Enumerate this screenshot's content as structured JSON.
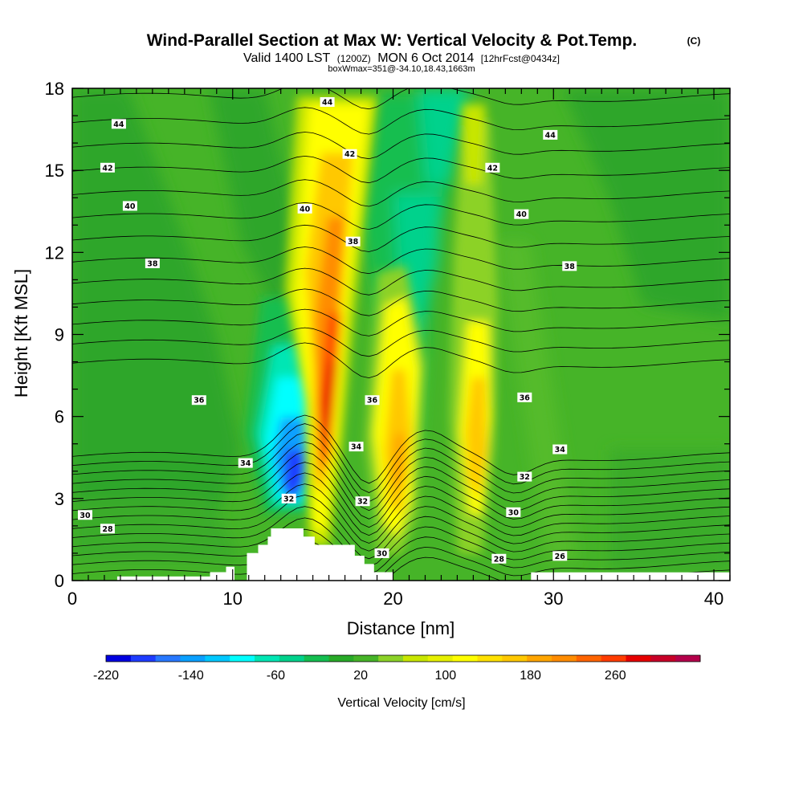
{
  "chart_data": {
    "type": "heatmap",
    "title_main": "Wind-Parallel Section at Max W: Vertical Velocity & Pot.Temp.",
    "title_copyright": "(C)",
    "subtitle_parts": [
      "Valid 1400 LST",
      "(1200Z)",
      "MON 6 Oct 2014",
      "[12hrFcst@0434z]"
    ],
    "subtitle2": "boxWmax=351@-34.10,18.43,1663m",
    "xlabel": "Distance [nm]",
    "ylabel": "Height [Kft MSL]",
    "xlim": [
      0,
      41
    ],
    "ylim": [
      0,
      18
    ],
    "xticks": [
      0,
      10,
      20,
      30,
      40
    ],
    "yticks": [
      0,
      3,
      6,
      9,
      12,
      15,
      18
    ],
    "colorbar": {
      "label": "Vertical Velocity [cm/s]",
      "min": -220,
      "max": 340,
      "step": 20,
      "ticks": [
        -220,
        -140,
        -60,
        20,
        100,
        180,
        260
      ],
      "colors": [
        "#0000e0",
        "#1e3cff",
        "#2878ff",
        "#0aa0ff",
        "#00c8ff",
        "#00ffff",
        "#00e6b4",
        "#00d28c",
        "#14be50",
        "#28aa28",
        "#46b428",
        "#8cd228",
        "#c8e600",
        "#e6f000",
        "#ffff00",
        "#ffe100",
        "#ffc800",
        "#ffa500",
        "#ff8c00",
        "#ff6400",
        "#ff3c00",
        "#e60000",
        "#c80028",
        "#b4004b"
      ]
    },
    "wind_features": [
      {
        "name": "downdraft",
        "x_nm": 13.6,
        "z_kft": 3.8,
        "w_cms": -220
      },
      {
        "name": "main updraft",
        "x_nm": 15.9,
        "z_kft": 6.8,
        "w_cms": 351
      },
      {
        "name": "updraft",
        "x_nm": 20.5,
        "z_kft": 5.0,
        "w_cms": 110
      },
      {
        "name": "updraft",
        "x_nm": 25.5,
        "z_kft": 5.0,
        "w_cms": 110
      }
    ],
    "terrain_profile": [
      [
        8.6,
        0
      ],
      [
        8.6,
        0.3
      ],
      [
        9.6,
        0.3
      ],
      [
        9.6,
        0.5
      ],
      [
        10.1,
        0.5
      ],
      [
        10.1,
        0
      ],
      [
        10.9,
        0
      ],
      [
        10.9,
        1.0
      ],
      [
        11.6,
        1.0
      ],
      [
        11.6,
        1.3
      ],
      [
        12.2,
        1.3
      ],
      [
        12.2,
        1.6
      ],
      [
        12.4,
        1.6
      ],
      [
        12.4,
        1.9
      ],
      [
        14.4,
        1.9
      ],
      [
        14.4,
        1.6
      ],
      [
        15.1,
        1.6
      ],
      [
        15.1,
        1.3
      ],
      [
        17.6,
        1.3
      ],
      [
        17.6,
        0.9
      ],
      [
        18.2,
        0.9
      ],
      [
        18.2,
        0.6
      ],
      [
        18.8,
        0.6
      ],
      [
        18.8,
        0.3
      ],
      [
        20.0,
        0.3
      ],
      [
        20.0,
        0
      ]
    ],
    "contour_labels": [
      {
        "text": "44",
        "x": 2.9,
        "z": 16.7
      },
      {
        "text": "44",
        "x": 15.9,
        "z": 17.5
      },
      {
        "text": "44",
        "x": 29.8,
        "z": 16.3
      },
      {
        "text": "42",
        "x": 2.2,
        "z": 15.1
      },
      {
        "text": "42",
        "x": 17.3,
        "z": 15.6
      },
      {
        "text": "42",
        "x": 26.2,
        "z": 15.1
      },
      {
        "text": "40",
        "x": 3.6,
        "z": 13.7
      },
      {
        "text": "40",
        "x": 14.5,
        "z": 13.6
      },
      {
        "text": "40",
        "x": 28.0,
        "z": 13.4
      },
      {
        "text": "38",
        "x": 5.0,
        "z": 11.6
      },
      {
        "text": "38",
        "x": 17.5,
        "z": 12.4
      },
      {
        "text": "38",
        "x": 31.0,
        "z": 11.5
      },
      {
        "text": "36",
        "x": 7.9,
        "z": 6.6
      },
      {
        "text": "36",
        "x": 18.7,
        "z": 6.6
      },
      {
        "text": "36",
        "x": 28.2,
        "z": 6.7
      },
      {
        "text": "34",
        "x": 10.8,
        "z": 4.3
      },
      {
        "text": "34",
        "x": 17.7,
        "z": 4.9
      },
      {
        "text": "34",
        "x": 30.4,
        "z": 4.8
      },
      {
        "text": "32",
        "x": 13.5,
        "z": 3.0
      },
      {
        "text": "32",
        "x": 18.1,
        "z": 2.9
      },
      {
        "text": "32",
        "x": 28.2,
        "z": 3.8
      },
      {
        "text": "30",
        "x": 0.8,
        "z": 2.4
      },
      {
        "text": "30",
        "x": 19.3,
        "z": 1.0
      },
      {
        "text": "30",
        "x": 27.5,
        "z": 2.5
      },
      {
        "text": "28",
        "x": 2.2,
        "z": 1.9
      },
      {
        "text": "28",
        "x": 26.6,
        "z": 0.8
      },
      {
        "text": "26",
        "x": 30.4,
        "z": 0.9
      }
    ]
  }
}
